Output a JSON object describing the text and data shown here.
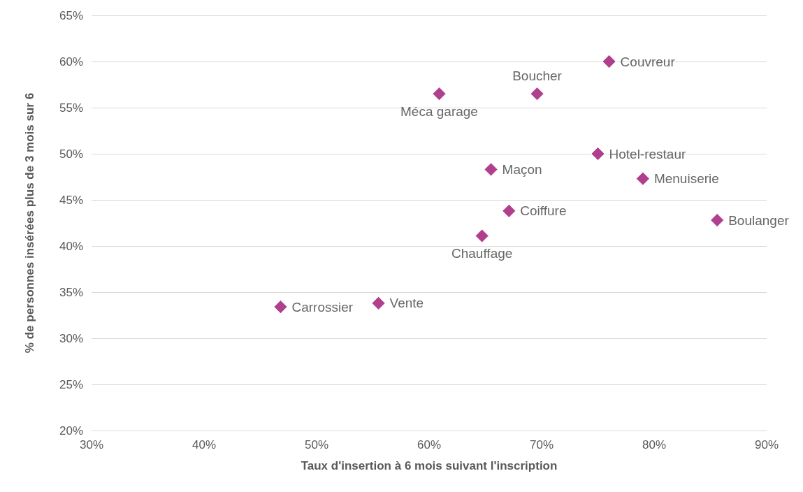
{
  "chart_data": {
    "type": "scatter",
    "xlabel": "Taux d'insertion à 6 mois suivant l'inscription",
    "ylabel": "% de personnes insérées plus de 3 mois sur 6",
    "xlim": [
      30,
      90
    ],
    "xticks": [
      {
        "value": 30,
        "label": "30%"
      },
      {
        "value": 40,
        "label": "40%"
      },
      {
        "value": 50,
        "label": "50%"
      },
      {
        "value": 60,
        "label": "60%"
      },
      {
        "value": 70,
        "label": "70%"
      },
      {
        "value": 80,
        "label": "80%"
      },
      {
        "value": 90,
        "label": "90%"
      }
    ],
    "ylim": [
      20,
      65
    ],
    "yticks": [
      {
        "value": 20,
        "label": "20%"
      },
      {
        "value": 25,
        "label": "25%"
      },
      {
        "value": 30,
        "label": "30%"
      },
      {
        "value": 35,
        "label": "35%"
      },
      {
        "value": 40,
        "label": "40%"
      },
      {
        "value": 45,
        "label": "45%"
      },
      {
        "value": 50,
        "label": "50%"
      },
      {
        "value": 55,
        "label": "55%"
      },
      {
        "value": 60,
        "label": "60%"
      },
      {
        "value": 65,
        "label": "65%"
      }
    ],
    "grid": "y",
    "marker": "diamond",
    "legend": false,
    "series": [
      {
        "name": "Carrossier",
        "color": "#9c0f72",
        "x": [
          46.8
        ],
        "values": [
          33.4
        ]
      },
      {
        "name": "Vente",
        "color": "#9c0f72",
        "x": [
          55.5
        ],
        "values": [
          33.8
        ]
      },
      {
        "name": "Méca garage",
        "color": "#9c0f72",
        "x": [
          60.9
        ],
        "values": [
          56.5
        ]
      },
      {
        "name": "Chauffage",
        "color": "#9c0f72",
        "x": [
          64.7
        ],
        "values": [
          41.1
        ]
      },
      {
        "name": "Maçon",
        "color": "#9c0f72",
        "x": [
          65.5
        ],
        "values": [
          48.3
        ]
      },
      {
        "name": "Coiffure",
        "color": "#9c0f72",
        "x": [
          67.1
        ],
        "values": [
          43.8
        ]
      },
      {
        "name": "Boucher",
        "color": "#9c0f72",
        "x": [
          69.6
        ],
        "values": [
          56.5
        ]
      },
      {
        "name": "Hotel-restaur",
        "color": "#9c0f72",
        "x": [
          75.0
        ],
        "values": [
          50.0
        ]
      },
      {
        "name": "Couvreur",
        "color": "#9c0f72",
        "x": [
          76.0
        ],
        "values": [
          60.0
        ]
      },
      {
        "name": "Menuiserie",
        "color": "#9c0f72",
        "x": [
          79.0
        ],
        "values": [
          47.3
        ]
      },
      {
        "name": "Boulanger",
        "color": "#9c0f72",
        "x": [
          85.6
        ],
        "values": [
          42.8
        ]
      }
    ]
  }
}
